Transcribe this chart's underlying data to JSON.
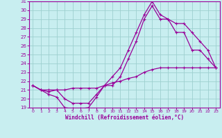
{
  "title": "",
  "xlabel": "Windchill (Refroidissement éolien,°C)",
  "ylabel": "",
  "bg_color": "#c8eef0",
  "line_color": "#990099",
  "grid_color": "#9dcfcf",
  "xlim": [
    -0.5,
    23.5
  ],
  "ylim": [
    19,
    31
  ],
  "xticks": [
    0,
    1,
    2,
    3,
    4,
    5,
    6,
    7,
    8,
    9,
    10,
    11,
    12,
    13,
    14,
    15,
    16,
    17,
    18,
    19,
    20,
    21,
    22,
    23
  ],
  "yticks": [
    19,
    20,
    21,
    22,
    23,
    24,
    25,
    26,
    27,
    28,
    29,
    30,
    31
  ],
  "line1_x": [
    0,
    1,
    2,
    3,
    4,
    5,
    6,
    7,
    8,
    9,
    10,
    11,
    12,
    13,
    14,
    15,
    16,
    17,
    18,
    19,
    20,
    21,
    22,
    23
  ],
  "line1_y": [
    21.5,
    21.0,
    20.5,
    20.2,
    19.0,
    18.9,
    18.9,
    19.0,
    20.2,
    21.5,
    21.5,
    22.5,
    24.5,
    26.5,
    29.0,
    30.5,
    29.0,
    29.0,
    27.5,
    27.5,
    25.5,
    25.5,
    24.5,
    23.5
  ],
  "line2_x": [
    0,
    1,
    2,
    3,
    4,
    5,
    6,
    7,
    8,
    9,
    10,
    11,
    12,
    13,
    14,
    15,
    16,
    17,
    18,
    19,
    20,
    21,
    22,
    23
  ],
  "line2_y": [
    21.5,
    21.0,
    20.8,
    21.0,
    20.0,
    19.5,
    19.5,
    19.5,
    20.5,
    21.5,
    22.5,
    23.5,
    25.5,
    27.5,
    29.5,
    31.0,
    29.5,
    29.0,
    28.5,
    28.5,
    27.5,
    26.5,
    25.5,
    23.5
  ],
  "line3_x": [
    0,
    1,
    2,
    3,
    4,
    5,
    6,
    7,
    8,
    9,
    10,
    11,
    12,
    13,
    14,
    15,
    16,
    17,
    18,
    19,
    20,
    21,
    22,
    23
  ],
  "line3_y": [
    21.5,
    21.0,
    21.0,
    21.0,
    21.0,
    21.2,
    21.2,
    21.2,
    21.2,
    21.5,
    21.8,
    22.0,
    22.3,
    22.5,
    23.0,
    23.3,
    23.5,
    23.5,
    23.5,
    23.5,
    23.5,
    23.5,
    23.5,
    23.5
  ]
}
